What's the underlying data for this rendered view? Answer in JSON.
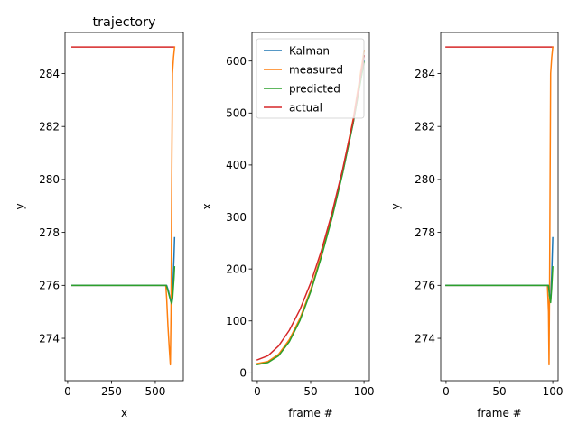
{
  "chart_data": [
    {
      "type": "line",
      "title": "trajectory",
      "xlabel": "x",
      "ylabel": "y",
      "xlim": [
        -15,
        660
      ],
      "ylim": [
        272.4,
        285.55
      ],
      "xticks": [
        0,
        250,
        500
      ],
      "xtick_labels": [
        "0",
        "250",
        "500"
      ],
      "yticks": [
        274,
        276,
        278,
        280,
        282,
        284
      ],
      "ytick_labels": [
        "274",
        "276",
        "278",
        "280",
        "282",
        "284"
      ],
      "grid": false,
      "series": [
        {
          "color": "#d62728",
          "points": [
            [
              25,
              285
            ],
            [
              610,
              285
            ]
          ]
        },
        {
          "color": "#ff7f0e",
          "points": [
            [
              25,
              276
            ],
            [
              560,
              276
            ],
            [
              565,
              275.5
            ],
            [
              572,
              274.5
            ],
            [
              580,
              273.6
            ],
            [
              586,
              273.0
            ],
            [
              590,
              275.0
            ],
            [
              594,
              280.0
            ],
            [
              598,
              284.0
            ],
            [
              604,
              284.6
            ],
            [
              610,
              285.0
            ]
          ]
        },
        {
          "color": "#1f77b4",
          "points": [
            [
              25,
              276
            ],
            [
              565,
              276
            ],
            [
              575,
              275.8
            ],
            [
              585,
              275.5
            ],
            [
              592,
              275.35
            ],
            [
              598,
              275.6
            ],
            [
              603,
              276.4
            ],
            [
              607,
              277.1
            ],
            [
              610,
              277.8
            ]
          ]
        },
        {
          "color": "#2ca02c",
          "points": [
            [
              25,
              276
            ],
            [
              563,
              276
            ],
            [
              572,
              275.8
            ],
            [
              580,
              275.6
            ],
            [
              588,
              275.4
            ],
            [
              594,
              275.3
            ],
            [
              599,
              275.5
            ],
            [
              603,
              275.9
            ],
            [
              607,
              276.3
            ],
            [
              610,
              276.7
            ]
          ]
        }
      ]
    },
    {
      "type": "line",
      "title": "",
      "xlabel": "frame #",
      "ylabel": "x",
      "xlim": [
        -5,
        105
      ],
      "ylim": [
        -15,
        655
      ],
      "xticks": [
        0,
        50,
        100
      ],
      "xtick_labels": [
        "0",
        "50",
        "100"
      ],
      "yticks": [
        0,
        100,
        200,
        300,
        400,
        500,
        600
      ],
      "ytick_labels": [
        "0",
        "100",
        "200",
        "300",
        "400",
        "500",
        "600"
      ],
      "grid": false,
      "legend": {
        "position": "top-left",
        "entries": [
          {
            "label": "Kalman",
            "color": "#1f77b4"
          },
          {
            "label": "measured",
            "color": "#ff7f0e"
          },
          {
            "label": "predicted",
            "color": "#2ca02c"
          },
          {
            "label": "actual",
            "color": "#d62728"
          }
        ]
      },
      "series": [
        {
          "name": "Kalman",
          "color": "#1f77b4",
          "points": [
            [
              0,
              17
            ],
            [
              10,
              21
            ],
            [
              20,
              34
            ],
            [
              30,
              62
            ],
            [
              40,
              103
            ],
            [
              50,
              158
            ],
            [
              60,
              225
            ],
            [
              70,
              300
            ],
            [
              80,
              385
            ],
            [
              90,
              483
            ],
            [
              100,
              600
            ]
          ]
        },
        {
          "name": "measured",
          "color": "#ff7f0e",
          "points": [
            [
              0,
              18
            ],
            [
              10,
              22
            ],
            [
              20,
              36
            ],
            [
              30,
              64
            ],
            [
              40,
              105
            ],
            [
              50,
              160
            ],
            [
              60,
              227
            ],
            [
              70,
              303
            ],
            [
              80,
              390
            ],
            [
              90,
              490
            ],
            [
              100,
              620
            ]
          ]
        },
        {
          "name": "predicted",
          "color": "#2ca02c",
          "points": [
            [
              0,
              16
            ],
            [
              10,
              20
            ],
            [
              20,
              33
            ],
            [
              30,
              60
            ],
            [
              40,
              101
            ],
            [
              50,
              156
            ],
            [
              60,
              223
            ],
            [
              70,
              298
            ],
            [
              80,
              384
            ],
            [
              90,
              482
            ],
            [
              100,
              598
            ]
          ]
        },
        {
          "name": "actual",
          "color": "#d62728",
          "points": [
            [
              0,
              25
            ],
            [
              10,
              33
            ],
            [
              20,
              52
            ],
            [
              30,
              82
            ],
            [
              40,
              122
            ],
            [
              50,
              173
            ],
            [
              60,
              235
            ],
            [
              70,
              308
            ],
            [
              80,
              392
            ],
            [
              90,
              487
            ],
            [
              100,
              610
            ]
          ]
        }
      ]
    },
    {
      "type": "line",
      "title": "",
      "xlabel": "frame #",
      "ylabel": "y",
      "xlim": [
        -5,
        105
      ],
      "ylim": [
        272.4,
        285.55
      ],
      "xticks": [
        0,
        50,
        100
      ],
      "xtick_labels": [
        "0",
        "50",
        "100"
      ],
      "yticks": [
        274,
        276,
        278,
        280,
        282,
        284
      ],
      "ytick_labels": [
        "274",
        "276",
        "278",
        "280",
        "282",
        "284"
      ],
      "grid": false,
      "series": [
        {
          "color": "#d62728",
          "points": [
            [
              0,
              285
            ],
            [
              100,
              285
            ]
          ]
        },
        {
          "color": "#ff7f0e",
          "points": [
            [
              0,
              276
            ],
            [
              95,
              276
            ],
            [
              96,
              275.0
            ],
            [
              96.5,
              273.0
            ],
            [
              97,
              276.0
            ],
            [
              97.5,
              280.0
            ],
            [
              98,
              284.0
            ],
            [
              99,
              284.6
            ],
            [
              100,
              285.0
            ]
          ]
        },
        {
          "color": "#1f77b4",
          "points": [
            [
              0,
              276
            ],
            [
              96,
              276
            ],
            [
              97,
              275.6
            ],
            [
              98,
              275.4
            ],
            [
              99,
              276.4
            ],
            [
              100,
              277.8
            ]
          ]
        },
        {
          "color": "#2ca02c",
          "points": [
            [
              0,
              276
            ],
            [
              96,
              276
            ],
            [
              97,
              275.6
            ],
            [
              98,
              275.35
            ],
            [
              99,
              275.9
            ],
            [
              100,
              276.7
            ]
          ]
        }
      ]
    }
  ]
}
